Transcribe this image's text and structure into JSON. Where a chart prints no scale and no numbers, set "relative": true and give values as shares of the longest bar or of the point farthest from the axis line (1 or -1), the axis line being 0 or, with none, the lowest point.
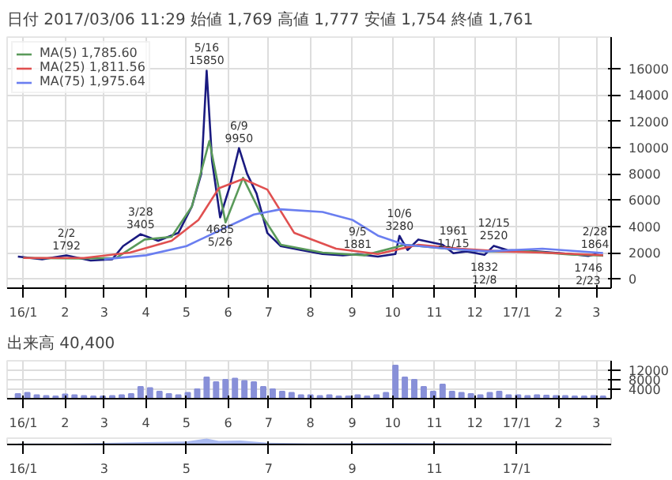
{
  "chart_data": [
    {
      "type": "line",
      "title": "日付 2017/03/06 11:29 始値 1,769 高値 1,777 安値 1,754 終値 1,761",
      "xlim": [
        "2015-12-20",
        "2017-03-12"
      ],
      "ylim": [
        -700,
        18400
      ],
      "yticks": [
        0,
        2000,
        4000,
        6000,
        8000,
        10000,
        12000,
        14000,
        16000
      ],
      "xticks": [
        {
          "value": "2016-01-01",
          "label": "16/1"
        },
        {
          "value": "2016-02-01",
          "label": "2"
        },
        {
          "value": "2016-03-01",
          "label": "3"
        },
        {
          "value": "2016-04-01",
          "label": "4"
        },
        {
          "value": "2016-05-01",
          "label": "5"
        },
        {
          "value": "2016-06-01",
          "label": "6"
        },
        {
          "value": "2016-07-01",
          "label": "7"
        },
        {
          "value": "2016-08-01",
          "label": "8"
        },
        {
          "value": "2016-09-01",
          "label": "9"
        },
        {
          "value": "2016-10-01",
          "label": "10"
        },
        {
          "value": "2016-11-01",
          "label": "11"
        },
        {
          "value": "2016-12-01",
          "label": "12"
        },
        {
          "value": "2017-01-01",
          "label": "17/1"
        },
        {
          "value": "2017-02-01",
          "label": "2"
        },
        {
          "value": "2017-03-01",
          "label": "3"
        }
      ],
      "grid": true,
      "legend": "top left",
      "series": [
        {
          "color": "#1a1a80",
          "x": [
            "2015-12-28",
            "2016-01-15",
            "2016-02-02",
            "2016-02-20",
            "2016-03-07",
            "2016-03-15",
            "2016-03-28",
            "2016-04-10",
            "2016-04-25",
            "2016-05-05",
            "2016-05-12",
            "2016-05-16",
            "2016-05-20",
            "2016-05-26",
            "2016-06-02",
            "2016-06-09",
            "2016-06-15",
            "2016-06-22",
            "2016-06-30",
            "2016-07-10",
            "2016-07-25",
            "2016-08-10",
            "2016-08-25",
            "2016-09-05",
            "2016-09-20",
            "2016-10-03",
            "2016-10-06",
            "2016-10-12",
            "2016-10-20",
            "2016-11-07",
            "2016-11-15",
            "2016-11-25",
            "2016-12-08",
            "2016-12-15",
            "2016-12-25",
            "2017-01-15",
            "2017-02-10",
            "2017-02-23",
            "2017-02-28",
            "2017-03-06"
          ],
          "values": [
            1700,
            1500,
            1792,
            1400,
            1500,
            2500,
            3405,
            2900,
            3500,
            5500,
            8000,
            15850,
            9000,
            4685,
            7000,
            9950,
            8000,
            6500,
            3500,
            2500,
            2200,
            1900,
            1800,
            1881,
            1700,
            1900,
            3280,
            2200,
            3000,
            2600,
            1961,
            2100,
            1832,
            2520,
            2200,
            2100,
            1900,
            1746,
            1864,
            1761
          ]
        },
        {
          "name": "MA(5) 1,785.60",
          "color": "#5a9a5a",
          "x": [
            "2016-01-01",
            "2016-02-10",
            "2016-03-10",
            "2016-03-31",
            "2016-04-20",
            "2016-05-05",
            "2016-05-18",
            "2016-05-30",
            "2016-06-12",
            "2016-06-25",
            "2016-07-10",
            "2016-08-10",
            "2016-09-10",
            "2016-10-10",
            "2016-11-10",
            "2016-12-10",
            "2017-01-10",
            "2017-02-10",
            "2017-03-06"
          ],
          "values": [
            1600,
            1550,
            1600,
            3000,
            3200,
            5500,
            10500,
            4300,
            7700,
            5000,
            2600,
            2000,
            1800,
            2600,
            2300,
            2100,
            2100,
            1850,
            1786
          ]
        },
        {
          "name": "MA(25) 1,811.56",
          "color": "#e05050",
          "x": [
            "2016-01-01",
            "2016-02-15",
            "2016-03-20",
            "2016-04-20",
            "2016-05-10",
            "2016-05-25",
            "2016-06-12",
            "2016-06-30",
            "2016-07-20",
            "2016-08-20",
            "2016-09-20",
            "2016-10-20",
            "2016-11-20",
            "2016-12-20",
            "2017-01-20",
            "2017-03-06"
          ],
          "values": [
            1600,
            1600,
            2000,
            2900,
            4500,
            6900,
            7600,
            6800,
            3500,
            2300,
            1900,
            2600,
            2300,
            2100,
            2000,
            1812
          ]
        },
        {
          "name": "MA(75) 1,975.64",
          "color": "#6a7ef0",
          "x": [
            "2016-03-01",
            "2016-04-01",
            "2016-05-01",
            "2016-06-01",
            "2016-06-20",
            "2016-07-10",
            "2016-08-10",
            "2016-09-01",
            "2016-09-20",
            "2016-10-10",
            "2016-11-10",
            "2016-12-10",
            "2017-01-20",
            "2017-03-06"
          ],
          "values": [
            1500,
            1800,
            2500,
            4000,
            4900,
            5300,
            5100,
            4500,
            3300,
            2600,
            2300,
            2100,
            2300,
            1976
          ]
        }
      ],
      "annotations": [
        {
          "text": "2/2\n1792",
          "x": "2016-02-02",
          "y": 1792
        },
        {
          "text": "3/28\n3405",
          "x": "2016-03-28",
          "y": 3405
        },
        {
          "text": "5/16\n15850",
          "x": "2016-05-16",
          "y": 15850
        },
        {
          "text": "6/9\n9950",
          "x": "2016-06-09",
          "y": 9950
        },
        {
          "text": "4685\n5/26",
          "x": "2016-05-26",
          "y": 4685
        },
        {
          "text": "9/5\n1881",
          "x": "2016-09-05",
          "y": 1881
        },
        {
          "text": "10/6\n3280",
          "x": "2016-10-06",
          "y": 3280
        },
        {
          "text": "1961\n11/15",
          "x": "2016-11-15",
          "y": 1961
        },
        {
          "text": "12/15\n2520",
          "x": "2016-12-15",
          "y": 2520
        },
        {
          "text": "1832\n12/8",
          "x": "2016-12-08",
          "y": 1832
        },
        {
          "text": "2/28\n1864",
          "x": "2017-02-28",
          "y": 1864
        },
        {
          "text": "1746\n2/23",
          "x": "2017-02-23",
          "y": 1746
        }
      ]
    },
    {
      "type": "bar",
      "title": "出来高 40,400",
      "xlim": [
        "2015-12-20",
        "2017-03-12"
      ],
      "ylim": [
        0,
        16000
      ],
      "yticks": [
        4000,
        8000,
        12000
      ],
      "grid": true,
      "xticks": [
        {
          "value": "2016-01-01",
          "label": "16/1"
        },
        {
          "value": "2016-02-01",
          "label": "2"
        },
        {
          "value": "2016-03-01",
          "label": "3"
        },
        {
          "value": "2016-04-01",
          "label": "4"
        },
        {
          "value": "2016-05-01",
          "label": "5"
        },
        {
          "value": "2016-06-01",
          "label": "6"
        },
        {
          "value": "2016-07-01",
          "label": "7"
        },
        {
          "value": "2016-08-01",
          "label": "8"
        },
        {
          "value": "2016-09-01",
          "label": "9"
        },
        {
          "value": "2016-10-01",
          "label": "10"
        },
        {
          "value": "2016-11-01",
          "label": "11"
        },
        {
          "value": "2016-12-01",
          "label": "12"
        },
        {
          "value": "2017-01-01",
          "label": "17/1"
        },
        {
          "value": "2017-02-01",
          "label": "2"
        },
        {
          "value": "2017-03-01",
          "label": "3"
        }
      ],
      "series": [
        {
          "color": "#8890d8",
          "x": [
            "2015-12-28",
            "2016-01-04",
            "2016-01-11",
            "2016-01-18",
            "2016-01-25",
            "2016-02-01",
            "2016-02-08",
            "2016-02-15",
            "2016-02-22",
            "2016-02-29",
            "2016-03-07",
            "2016-03-14",
            "2016-03-21",
            "2016-03-28",
            "2016-04-04",
            "2016-04-11",
            "2016-04-18",
            "2016-04-25",
            "2016-05-02",
            "2016-05-09",
            "2016-05-16",
            "2016-05-23",
            "2016-05-30",
            "2016-06-06",
            "2016-06-13",
            "2016-06-20",
            "2016-06-27",
            "2016-07-04",
            "2016-07-11",
            "2016-07-18",
            "2016-07-25",
            "2016-08-01",
            "2016-08-08",
            "2016-08-15",
            "2016-08-22",
            "2016-08-29",
            "2016-09-05",
            "2016-09-12",
            "2016-09-19",
            "2016-09-26",
            "2016-10-03",
            "2016-10-10",
            "2016-10-17",
            "2016-10-24",
            "2016-10-31",
            "2016-11-07",
            "2016-11-14",
            "2016-11-21",
            "2016-11-28",
            "2016-12-05",
            "2016-12-12",
            "2016-12-19",
            "2016-12-26",
            "2017-01-02",
            "2017-01-09",
            "2017-01-16",
            "2017-01-23",
            "2017-01-30",
            "2017-02-06",
            "2017-02-13",
            "2017-02-20",
            "2017-02-27",
            "2017-03-06"
          ],
          "values": [
            2000,
            2500,
            1500,
            1200,
            1000,
            1800,
            1500,
            1200,
            1000,
            1000,
            1200,
            1500,
            2000,
            5000,
            4500,
            3000,
            2000,
            1500,
            2500,
            4000,
            9000,
            7000,
            8000,
            8500,
            7500,
            7000,
            5000,
            4000,
            3000,
            2500,
            1500,
            1500,
            1200,
            1500,
            1000,
            1000,
            1500,
            1000,
            1500,
            2500,
            14000,
            9000,
            8000,
            5000,
            3000,
            6000,
            3000,
            2500,
            2000,
            1500,
            2500,
            3000,
            1500,
            1500,
            1200,
            1500,
            1300,
            1200,
            1200,
            1000,
            1000,
            1200,
            1000
          ]
        }
      ]
    },
    {
      "type": "area",
      "relative": true,
      "xlim": [
        "2015-12-20",
        "2017-03-12"
      ],
      "xticks": [
        {
          "value": "2016-01-01",
          "label": "16/1"
        },
        {
          "value": "2016-03-01",
          "label": "3"
        },
        {
          "value": "2016-05-01",
          "label": "5"
        },
        {
          "value": "2016-07-01",
          "label": "7"
        },
        {
          "value": "2016-09-01",
          "label": "9"
        },
        {
          "value": "2016-11-01",
          "label": "11"
        },
        {
          "value": "2017-01-01",
          "label": "17/1"
        }
      ],
      "series": [
        {
          "color": "#a8b8f0",
          "x": [
            "2015-12-28",
            "2016-02-01",
            "2016-03-01",
            "2016-04-01",
            "2016-05-01",
            "2016-05-16",
            "2016-05-25",
            "2016-06-10",
            "2016-06-30",
            "2016-08-01",
            "2016-10-06",
            "2016-12-01",
            "2017-02-01",
            "2017-03-06"
          ],
          "values": [
            0.15,
            0.15,
            0.25,
            0.4,
            0.5,
            1,
            0.6,
            0.65,
            0.3,
            0.2,
            0.25,
            0.2,
            0.2,
            0.18
          ]
        }
      ]
    }
  ]
}
